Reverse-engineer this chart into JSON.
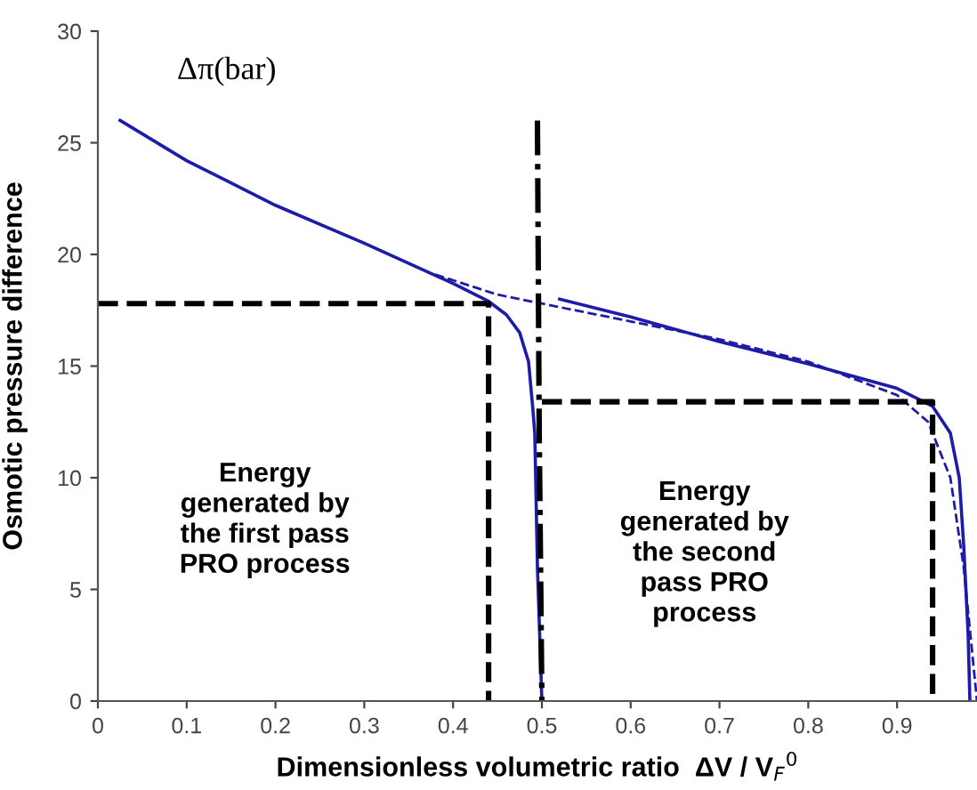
{
  "chart_data": {
    "type": "line",
    "xlabel": "Dimensionless volumetric ratio  ΔV / V$_{F}$$^{0}$",
    "ylabel": "Osmotic pressure difference",
    "annotations": [
      "Δπ(bar)",
      "Energy\ngenerated by\nthe first pass\nPRO process",
      "Energy\ngenerated by\nthe second\npass PRO\nprocess"
    ],
    "xlim": [
      0,
      0.99
    ],
    "xticks": [
      0,
      0.1,
      0.2,
      0.3,
      0.4,
      0.5,
      0.6,
      0.7,
      0.8,
      0.9
    ],
    "ylim": [
      0,
      30
    ],
    "yticks": [
      0,
      5,
      10,
      15,
      20,
      25,
      30
    ],
    "grid": false,
    "legend": false,
    "series": [
      {
        "color": "#1c1ca8",
        "line_style": "solid",
        "x": [
          0.025,
          0.1,
          0.2,
          0.3,
          0.4,
          0.44,
          0.46,
          0.475,
          0.485,
          0.49,
          0.492,
          0.495,
          0.5
        ],
        "values": [
          26,
          24.2,
          22.2,
          20.5,
          18.7,
          17.9,
          17.3,
          16.5,
          15.2,
          13,
          12,
          6,
          0
        ]
      },
      {
        "color": "#1c1ca8",
        "line_style": "dashed",
        "x": [
          0.38,
          0.45,
          0.5,
          0.55,
          0.6,
          0.7,
          0.8,
          0.9,
          0.935,
          0.96,
          0.975,
          0.985,
          0.99
        ],
        "values": [
          19.1,
          18.2,
          17.8,
          17.4,
          17.0,
          16.2,
          15.2,
          13.7,
          12.5,
          10,
          6,
          2,
          0
        ]
      },
      {
        "color": "#1c1ca8",
        "line_style": "solid",
        "x": [
          0.52,
          0.6,
          0.7,
          0.8,
          0.9,
          0.94,
          0.96,
          0.97,
          0.975,
          0.98,
          0.982
        ],
        "values": [
          18.0,
          17.2,
          16.1,
          15.1,
          14.0,
          13.2,
          12.0,
          10,
          7,
          3,
          0
        ]
      },
      {
        "color": "#000000",
        "line_style": "dashdot",
        "x": [
          0.495,
          0.497,
          0.5
        ],
        "values": [
          26,
          12,
          0
        ]
      },
      {
        "color": "#000000",
        "line_style": "dashed",
        "x": [
          0,
          0.44,
          0.44
        ],
        "values": [
          17.8,
          17.8,
          0
        ]
      },
      {
        "color": "#000000",
        "line_style": "dashed",
        "x": [
          0.5,
          0.94,
          0.94
        ],
        "values": [
          13.4,
          13.4,
          0
        ]
      }
    ]
  }
}
